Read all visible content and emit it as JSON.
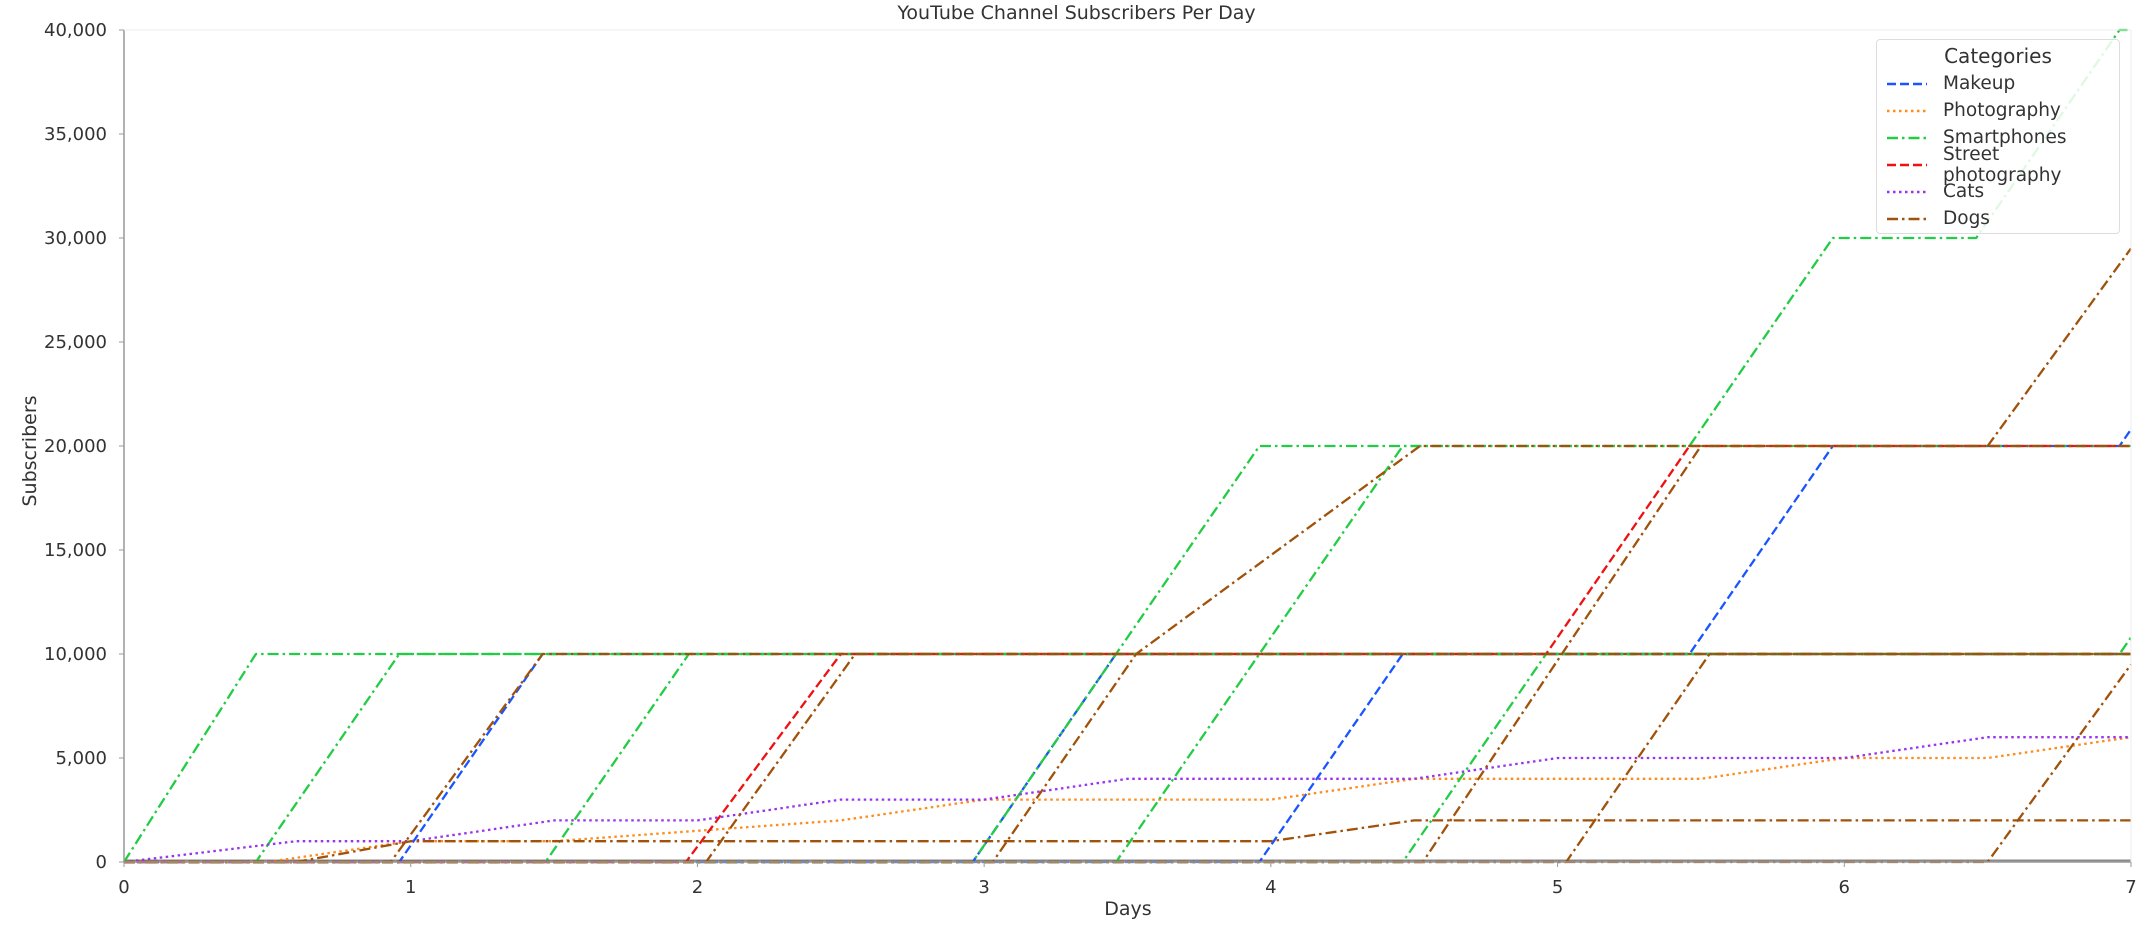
{
  "chart_data": {
    "type": "line",
    "title": "YouTube Channel Subscribers Per Day",
    "xlabel": "Days",
    "ylabel": "Subscribers",
    "xlim": [
      0,
      7
    ],
    "ylim": [
      0,
      40000
    ],
    "xticks": [
      "0",
      "1",
      "2",
      "3",
      "4",
      "5",
      "6",
      "7"
    ],
    "yticks": [
      "0",
      "5,000",
      "10,000",
      "15,000",
      "20,000",
      "25,000",
      "30,000",
      "35,000",
      "40,000"
    ],
    "grid": false,
    "legend": {
      "title": "Categories",
      "placement": "top-right",
      "entries": [
        {
          "name": "Makeup",
          "color": "#1a55ff",
          "style": "dashed"
        },
        {
          "name": "Photography",
          "color": "#ff8c1a",
          "style": "dotted"
        },
        {
          "name": "Smartphones",
          "color": "#22cc44",
          "style": "dashdot"
        },
        {
          "name": "Street photography",
          "color": "#ee1111",
          "style": "dashed"
        },
        {
          "name": "Cats",
          "color": "#9933ee",
          "style": "dotted"
        },
        {
          "name": "Dogs",
          "color": "#a0520a",
          "style": "dashdot"
        }
      ]
    },
    "series": [
      {
        "category": "Makeup",
        "points": [
          [
            0,
            0
          ],
          [
            0.96,
            0
          ],
          [
            1.46,
            10000
          ],
          [
            7,
            10000
          ]
        ]
      },
      {
        "category": "Makeup",
        "points": [
          [
            0,
            0
          ],
          [
            3.96,
            0
          ],
          [
            4.46,
            10000
          ],
          [
            7,
            10000
          ]
        ]
      },
      {
        "category": "Makeup",
        "points": [
          [
            0,
            0
          ],
          [
            2.96,
            0
          ],
          [
            3.46,
            10000
          ],
          [
            5.46,
            10000
          ],
          [
            5.96,
            20000
          ],
          [
            6.96,
            20000
          ],
          [
            7,
            20800
          ]
        ]
      },
      {
        "category": "Photography",
        "points": [
          [
            0,
            0
          ],
          [
            0.5,
            0
          ],
          [
            1,
            1000
          ],
          [
            1.5,
            1000
          ],
          [
            2,
            1500
          ],
          [
            2.5,
            2000
          ],
          [
            3,
            3000
          ],
          [
            3.5,
            3000
          ],
          [
            4,
            3000
          ],
          [
            4.5,
            4000
          ],
          [
            5,
            4000
          ],
          [
            5.5,
            4000
          ],
          [
            6,
            5000
          ],
          [
            6.5,
            5000
          ],
          [
            7,
            6000
          ]
        ]
      },
      {
        "category": "Smartphones",
        "points": [
          [
            0,
            0
          ],
          [
            0.46,
            10000
          ],
          [
            7,
            10000
          ]
        ]
      },
      {
        "category": "Smartphones",
        "points": [
          [
            0,
            0
          ],
          [
            0.46,
            0
          ],
          [
            0.96,
            10000
          ],
          [
            7,
            10000
          ]
        ]
      },
      {
        "category": "Smartphones",
        "points": [
          [
            0,
            0
          ],
          [
            1.47,
            0
          ],
          [
            1.97,
            10000
          ],
          [
            7,
            10000
          ]
        ]
      },
      {
        "category": "Smartphones",
        "points": [
          [
            0,
            0
          ],
          [
            2.96,
            0
          ],
          [
            3.96,
            20000
          ],
          [
            5.46,
            20000
          ],
          [
            5.96,
            30000
          ],
          [
            6.46,
            30000
          ],
          [
            6.96,
            40000
          ],
          [
            7,
            40000
          ]
        ]
      },
      {
        "category": "Smartphones",
        "points": [
          [
            0,
            0
          ],
          [
            3.46,
            0
          ],
          [
            4.46,
            20000
          ],
          [
            7,
            20000
          ]
        ]
      },
      {
        "category": "Smartphones",
        "points": [
          [
            0,
            0
          ],
          [
            4.46,
            0
          ],
          [
            4.96,
            10000
          ],
          [
            6.96,
            10000
          ],
          [
            7,
            10800
          ]
        ]
      },
      {
        "category": "Street photography",
        "points": [
          [
            0,
            0
          ],
          [
            1.96,
            0
          ],
          [
            2.5,
            10000
          ],
          [
            4.96,
            10000
          ],
          [
            5.46,
            20000
          ],
          [
            7,
            20000
          ]
        ]
      },
      {
        "category": "Cats",
        "points": [
          [
            0,
            0
          ],
          [
            0.6,
            1000
          ],
          [
            1,
            1000
          ],
          [
            1.5,
            2000
          ],
          [
            2,
            2000
          ],
          [
            2.5,
            3000
          ],
          [
            3,
            3000
          ],
          [
            3.5,
            4000
          ],
          [
            4,
            4000
          ],
          [
            4.5,
            4000
          ],
          [
            5,
            5000
          ],
          [
            5.5,
            5000
          ],
          [
            6,
            5000
          ],
          [
            6.5,
            6000
          ],
          [
            7,
            6000
          ]
        ]
      },
      {
        "category": "Dogs",
        "points": [
          [
            0,
            0
          ],
          [
            0.6,
            0
          ],
          [
            1,
            1000
          ],
          [
            4,
            1000
          ],
          [
            4.5,
            2000
          ],
          [
            7,
            2000
          ]
        ]
      },
      {
        "category": "Dogs",
        "points": [
          [
            0,
            0
          ],
          [
            0.93,
            0
          ],
          [
            1.46,
            10000
          ],
          [
            7,
            10000
          ]
        ]
      },
      {
        "category": "Dogs",
        "points": [
          [
            0,
            0
          ],
          [
            2.03,
            0
          ],
          [
            2.55,
            10000
          ],
          [
            7,
            10000
          ]
        ]
      },
      {
        "category": "Dogs",
        "points": [
          [
            0,
            0
          ],
          [
            3.03,
            0
          ],
          [
            3.53,
            10000
          ],
          [
            4.52,
            20000
          ],
          [
            7,
            20000
          ]
        ]
      },
      {
        "category": "Dogs",
        "points": [
          [
            0,
            0
          ],
          [
            4.53,
            0
          ],
          [
            5.5,
            20000
          ],
          [
            6.5,
            20000
          ],
          [
            7,
            29500
          ]
        ]
      },
      {
        "category": "Dogs",
        "points": [
          [
            0,
            0
          ],
          [
            5.03,
            0
          ],
          [
            5.53,
            10000
          ],
          [
            7,
            10000
          ]
        ]
      },
      {
        "category": "Dogs",
        "points": [
          [
            0,
            0
          ],
          [
            6.5,
            0
          ],
          [
            7,
            9500
          ]
        ]
      }
    ]
  }
}
